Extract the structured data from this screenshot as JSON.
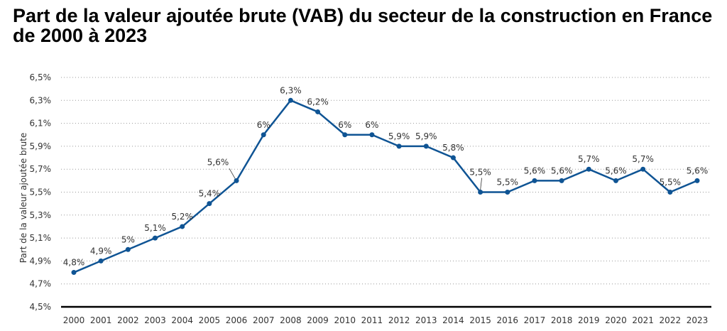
{
  "chart_data": {
    "type": "line",
    "title": "Part de la valeur ajoutée brute (VAB) du secteur de la construction en France de 2000 à 2023",
    "xlabel": "",
    "ylabel": "Part de la valeur ajoutée brute",
    "categories": [
      "2000",
      "2001",
      "2002",
      "2003",
      "2004",
      "2005",
      "2006",
      "2007",
      "2008",
      "2009",
      "2010",
      "2011",
      "2012",
      "2013",
      "2014",
      "2015",
      "2016",
      "2017",
      "2018",
      "2019",
      "2020",
      "2021",
      "2022",
      "2023"
    ],
    "values": [
      4.8,
      4.9,
      5.0,
      5.1,
      5.2,
      5.4,
      5.6,
      6.0,
      6.3,
      6.2,
      6.0,
      6.0,
      5.9,
      5.9,
      5.8,
      5.5,
      5.5,
      5.6,
      5.6,
      5.7,
      5.6,
      5.7,
      5.5,
      5.6
    ],
    "data_labels": [
      "4,8%",
      "4,9%",
      "5%",
      "5,1%",
      "5,2%",
      "5,4%",
      "5,6%",
      "6%",
      "6,3%",
      "6,2%",
      "6%",
      "6%",
      "5,9%",
      "5,9%",
      "5,8%",
      "5,5%",
      "5,5%",
      "5,6%",
      "5,6%",
      "5,7%",
      "5,6%",
      "5,7%",
      "5,5%",
      "5,6%"
    ],
    "ylim": [
      4.5,
      6.5
    ],
    "yticks": [
      4.5,
      4.7,
      4.9,
      5.1,
      5.3,
      5.5,
      5.7,
      5.9,
      6.1,
      6.3,
      6.5
    ],
    "ytick_labels": [
      "4,5%",
      "4,7%",
      "4,9%",
      "5,1%",
      "5,3%",
      "5,5%",
      "5,7%",
      "5,9%",
      "6,1%",
      "6,3%",
      "6,5%"
    ],
    "grid": "horizontal dotted",
    "legend": "none",
    "line_color": "#0f5494"
  }
}
